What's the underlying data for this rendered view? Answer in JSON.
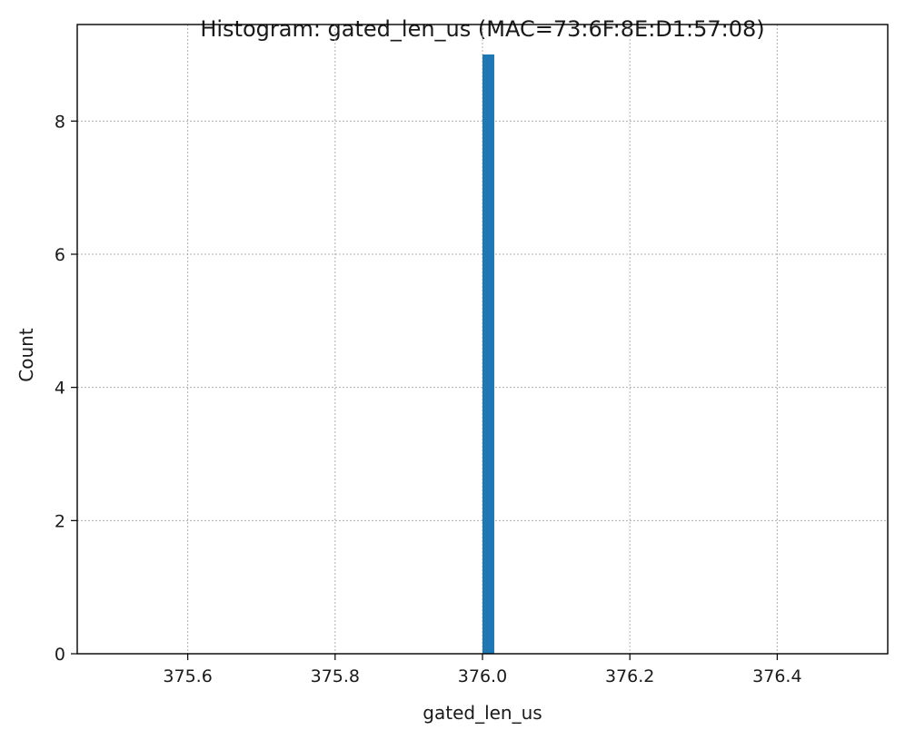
{
  "chart_data": {
    "type": "bar",
    "title": "Histogram: gated_len_us (MAC=73:6F:8E:D1:57:08)",
    "xlabel": "gated_len_us",
    "ylabel": "Count",
    "xlim": [
      375.45,
      376.55
    ],
    "ylim": [
      0,
      9.45
    ],
    "xticks": [
      {
        "value": 375.6,
        "label": "375.6"
      },
      {
        "value": 375.8,
        "label": "375.8"
      },
      {
        "value": 376.0,
        "label": "376.0"
      },
      {
        "value": 376.2,
        "label": "376.2"
      },
      {
        "value": 376.4,
        "label": "376.4"
      }
    ],
    "yticks": [
      {
        "value": 0,
        "label": "0"
      },
      {
        "value": 2,
        "label": "2"
      },
      {
        "value": 4,
        "label": "4"
      },
      {
        "value": 6,
        "label": "6"
      },
      {
        "value": 8,
        "label": "8"
      }
    ],
    "bars": [
      {
        "x_start": 376.0,
        "x_end": 376.016,
        "count": 9
      }
    ],
    "bar_color": "#1f77b4",
    "grid": true
  }
}
